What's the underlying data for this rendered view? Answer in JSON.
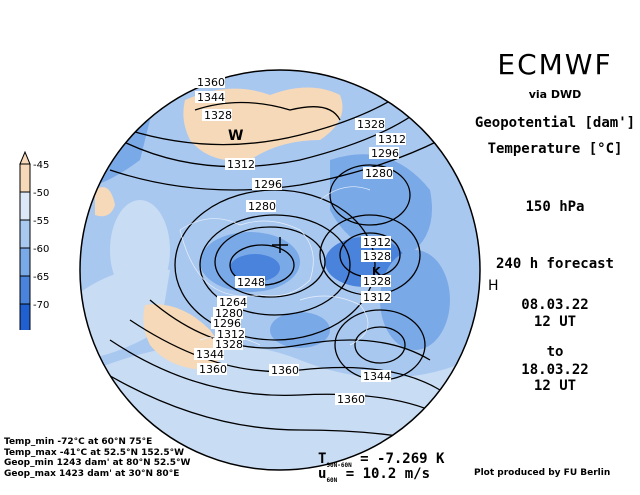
{
  "header": {
    "brand": "ECMWF",
    "via": "via DWD",
    "field1": "Geopotential [dam']",
    "field2": "Temperature [°C]",
    "level": "150 hPa",
    "forecast": "240 h forecast",
    "init_date": "08.03.22",
    "init_time": "12 UT",
    "to": "to",
    "valid_date": "18.03.22",
    "valid_time": "12 UT"
  },
  "legend": {
    "labels": [
      "-45",
      "-50",
      "-55",
      "-60",
      "-65",
      "-70"
    ],
    "colors": [
      "#f6d9b8",
      "#dce8f7",
      "#a9c8f0",
      "#7aa9e8",
      "#4a83dc",
      "#1f5fd0"
    ]
  },
  "stats": {
    "temp_min": "Temp_min -72°C at 60°N 75°E",
    "temp_max": "Temp_max -41°C at 52.5°N 152.5°W",
    "geop_min": "Geop_min 1243 dam' at 80°N 52.5°W",
    "geop_max": "Geop_max 1423 dam' at 30°N 80°E"
  },
  "diagnostics": {
    "t_label": "T",
    "t_sub": "90N-60N",
    "t_value": " = -7.269 K",
    "u_label": "u",
    "u_sub": "60N",
    "u_value": " = 10.2 m/s"
  },
  "credit": "Plot produced by FU Berlin",
  "map": {
    "pole_marker": "H",
    "high_marker": "W",
    "low_marker": "K",
    "contours": [
      "1360",
      "1344",
      "1328",
      "1312",
      "1296",
      "1280",
      "1328",
      "1312",
      "1296",
      "1280",
      "1312",
      "1328",
      "1328",
      "1312",
      "1248",
      "1264",
      "1280",
      "1296",
      "1312",
      "1328",
      "1344",
      "1360",
      "1360",
      "1344",
      "1360"
    ]
  }
}
